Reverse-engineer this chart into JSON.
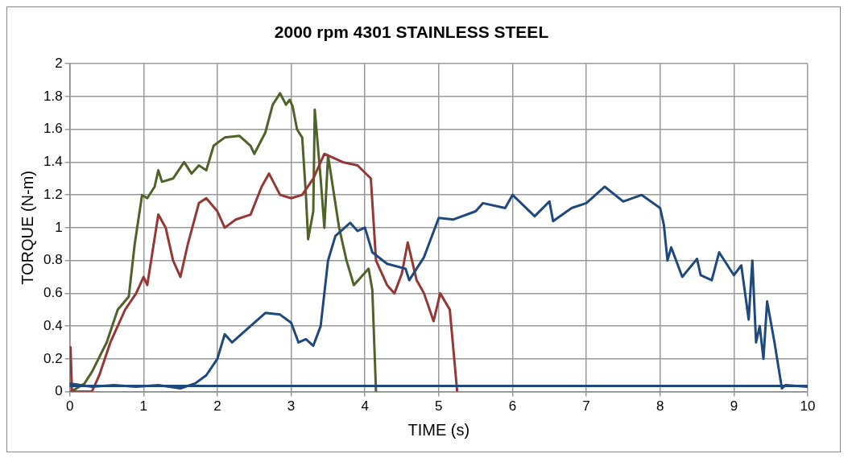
{
  "chart_data": {
    "type": "line",
    "title": "2000 rpm 4301 STAINLESS STEEL",
    "xlabel": "TIME (s)",
    "ylabel": "TORQUE (N-m)",
    "xlim": [
      0,
      10
    ],
    "xticks": [
      0,
      1,
      2,
      3,
      4,
      5,
      6,
      7,
      8,
      9,
      10
    ],
    "ylim": [
      0,
      2
    ],
    "yticks": [
      0,
      {
        "value": 0.2,
        "label": "0.2"
      },
      {
        "value": 0.4,
        "label": "0.4"
      },
      {
        "value": 0.6,
        "label": "0.6"
      },
      {
        "value": 0.8,
        "label": "0.8"
      },
      1,
      {
        "value": 1.2,
        "label": "1.2"
      },
      {
        "value": 1.4,
        "label": "1.4"
      },
      {
        "value": 1.6,
        "label": "1.6"
      },
      {
        "value": 1.8,
        "label": "1.8"
      },
      2
    ],
    "grid": true,
    "legend": false,
    "marker": "none",
    "line_style": "solid",
    "series": [
      {
        "color": "#1f497d",
        "x": [
          0,
          10
        ],
        "values": [
          0.035,
          0.035
        ]
      },
      {
        "color": "#1f497d",
        "x": [
          0,
          0.3,
          0.6,
          0.9,
          1.2,
          1.5,
          1.7,
          1.85,
          2.0,
          2.1,
          2.2,
          2.4,
          2.65,
          2.85,
          3.0,
          3.1,
          3.2,
          3.3,
          3.4,
          3.5,
          3.6,
          3.8,
          3.9,
          4.0,
          4.1,
          4.3,
          4.55,
          4.6,
          4.8,
          5.0,
          5.2,
          5.5,
          5.6,
          5.9,
          6.0,
          6.3,
          6.5,
          6.55,
          6.8,
          7.0,
          7.25,
          7.5,
          7.75,
          8.0,
          8.05,
          8.1,
          8.15,
          8.3,
          8.5,
          8.55,
          8.7,
          8.8,
          9.0,
          9.1,
          9.2,
          9.25,
          9.3,
          9.35,
          9.4,
          9.45,
          9.55,
          9.65,
          9.7,
          10
        ],
        "values": [
          0.05,
          0.03,
          0.04,
          0.03,
          0.04,
          0.02,
          0.05,
          0.1,
          0.2,
          0.35,
          0.3,
          0.38,
          0.48,
          0.47,
          0.42,
          0.3,
          0.32,
          0.28,
          0.4,
          0.8,
          0.95,
          1.03,
          0.98,
          1.0,
          0.85,
          0.78,
          0.75,
          0.68,
          0.82,
          1.06,
          1.05,
          1.1,
          1.15,
          1.12,
          1.2,
          1.07,
          1.16,
          1.04,
          1.12,
          1.15,
          1.25,
          1.16,
          1.2,
          1.12,
          1.02,
          0.8,
          0.88,
          0.7,
          0.81,
          0.71,
          0.68,
          0.85,
          0.71,
          0.77,
          0.44,
          0.8,
          0.3,
          0.4,
          0.2,
          0.55,
          0.3,
          0.02,
          0.04,
          0.03
        ]
      },
      {
        "color": "#953735",
        "x": [
          0.01,
          0.03,
          0.3,
          0.4,
          0.55,
          0.75,
          0.9,
          1.0,
          1.05,
          1.12,
          1.2,
          1.3,
          1.4,
          1.5,
          1.6,
          1.75,
          1.85,
          2.0,
          2.1,
          2.25,
          2.45,
          2.6,
          2.7,
          2.85,
          3.0,
          3.15,
          3.3,
          3.45,
          3.7,
          3.9,
          4.08,
          4.15,
          4.3,
          4.4,
          4.5,
          4.58,
          4.7,
          4.8,
          4.93,
          5.02,
          5.15,
          5.21,
          5.25
        ],
        "values": [
          0.27,
          0,
          0,
          0.1,
          0.3,
          0.5,
          0.6,
          0.7,
          0.65,
          0.85,
          1.08,
          1.0,
          0.8,
          0.7,
          0.9,
          1.15,
          1.18,
          1.1,
          1.0,
          1.05,
          1.08,
          1.25,
          1.33,
          1.2,
          1.18,
          1.2,
          1.3,
          1.45,
          1.4,
          1.38,
          1.3,
          0.8,
          0.65,
          0.6,
          0.72,
          0.91,
          0.68,
          0.6,
          0.43,
          0.6,
          0.5,
          0.2,
          0
        ]
      },
      {
        "color": "#4f6228",
        "x": [
          0.02,
          0.2,
          0.3,
          0.5,
          0.65,
          0.8,
          0.88,
          0.98,
          1.05,
          1.15,
          1.2,
          1.25,
          1.4,
          1.55,
          1.65,
          1.75,
          1.85,
          1.95,
          2.1,
          2.3,
          2.45,
          2.5,
          2.65,
          2.75,
          2.85,
          2.93,
          2.98,
          3.02,
          3.08,
          3.15,
          3.2,
          3.23,
          3.3,
          3.32,
          3.4,
          3.45,
          3.5,
          3.65,
          3.75,
          3.85,
          3.95,
          4.05,
          4.1,
          4.15
        ],
        "values": [
          0,
          0.05,
          0.12,
          0.3,
          0.5,
          0.58,
          0.9,
          1.2,
          1.18,
          1.25,
          1.35,
          1.28,
          1.3,
          1.4,
          1.33,
          1.38,
          1.35,
          1.5,
          1.55,
          1.56,
          1.5,
          1.45,
          1.58,
          1.75,
          1.82,
          1.75,
          1.78,
          1.74,
          1.6,
          1.55,
          1.2,
          0.93,
          1.1,
          1.72,
          1.3,
          1.0,
          1.44,
          1.0,
          0.8,
          0.65,
          0.7,
          0.75,
          0.62,
          0
        ]
      }
    ]
  }
}
